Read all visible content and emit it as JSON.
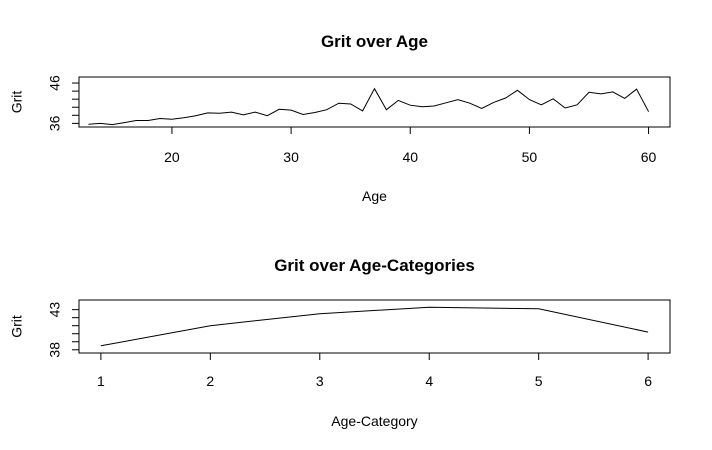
{
  "chart_data": [
    {
      "type": "line",
      "title": "Grit over Age",
      "xlabel": "Age",
      "ylabel": "Grit",
      "xlim": [
        12.2,
        61.8
      ],
      "ylim": [
        35.1,
        47.5
      ],
      "xticks": [
        20,
        30,
        40,
        50,
        60
      ],
      "yticks": [
        36,
        46
      ],
      "grid": false,
      "series": [
        {
          "x": [
            13,
            14,
            15,
            16,
            17,
            18,
            19,
            20,
            21,
            22,
            23,
            24,
            25,
            26,
            27,
            28,
            29,
            30,
            31,
            32,
            33,
            34,
            35,
            36,
            37,
            38,
            39,
            40,
            41,
            42,
            43,
            44,
            45,
            46,
            47,
            48,
            49,
            50,
            51,
            52,
            53,
            54,
            55,
            56,
            57,
            58,
            59,
            60
          ],
          "values": [
            35.8,
            36.0,
            35.7,
            36.2,
            36.7,
            36.7,
            37.2,
            37.0,
            37.4,
            37.9,
            38.6,
            38.5,
            38.8,
            38.1,
            38.8,
            37.9,
            39.5,
            39.3,
            38.2,
            38.7,
            39.4,
            41.0,
            40.8,
            39.1,
            44.6,
            39.4,
            41.7,
            40.5,
            40.1,
            40.3,
            41.1,
            41.9,
            41.0,
            39.7,
            41.2,
            42.3,
            44.2,
            41.9,
            40.6,
            42.1,
            39.8,
            40.6,
            43.7,
            43.3,
            43.8,
            42.2,
            44.5,
            38.9
          ]
        }
      ]
    },
    {
      "type": "line",
      "title": "Grit over Age-Categories",
      "xlabel": "Age-Category",
      "ylabel": "Grit",
      "xlim": [
        0.8,
        6.2
      ],
      "ylim": [
        37.6,
        44.2
      ],
      "xticks": [
        1,
        2,
        3,
        4,
        5,
        6
      ],
      "yticks": [
        38,
        43
      ],
      "grid": false,
      "series": [
        {
          "x": [
            1,
            2,
            3,
            4,
            5,
            6
          ],
          "values": [
            38.5,
            41.0,
            42.5,
            43.3,
            43.1,
            40.2
          ]
        }
      ]
    }
  ]
}
